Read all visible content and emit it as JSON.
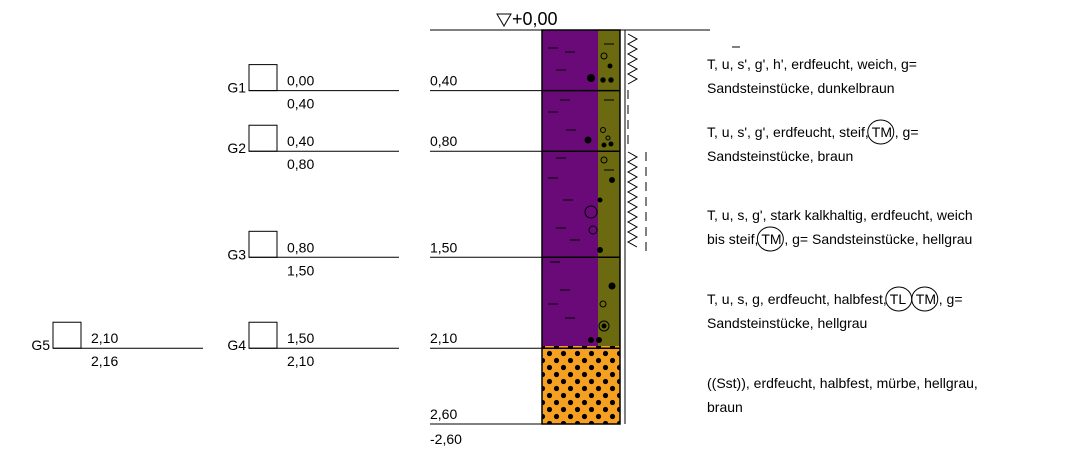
{
  "top_elevation": "+0,00",
  "bottom_elevation": "-2,60",
  "colors": {
    "clay": "#6a0a78",
    "strip": "#6b6a10",
    "rock": "#f5a020",
    "line": "#000000"
  },
  "layers": [
    {
      "depth_from": 0.0,
      "depth_to": 0.4,
      "depth_label": "0,40",
      "soil": "clay",
      "desc": [
        "T, u, s', g', h', erdfeucht, weich, g=",
        "Sandsteinstücke, dunkelbraun"
      ]
    },
    {
      "depth_from": 0.4,
      "depth_to": 0.8,
      "depth_label": "0,80",
      "soil": "clay",
      "desc": [
        "T, u, s', g', erdfeucht, steif,",
        "TM",
        ", g=",
        "Sandsteinstücke, braun"
      ]
    },
    {
      "depth_from": 0.8,
      "depth_to": 1.5,
      "depth_label": "1,50",
      "soil": "clay",
      "desc": [
        "T, u, s, g', stark kalkhaltig, erdfeucht, weich",
        "bis steif,",
        "TM",
        ", g= Sandsteinstücke, hellgrau"
      ]
    },
    {
      "depth_from": 1.5,
      "depth_to": 2.1,
      "depth_label": "2,10",
      "soil": "clay",
      "desc": [
        "T, u, s, g, erdfeucht, halbfest,",
        "TL",
        "TM",
        ", g=",
        "Sandsteinstücke, hellgrau"
      ]
    },
    {
      "depth_from": 2.1,
      "depth_to": 2.6,
      "depth_label": "2,60",
      "soil": "rock",
      "desc": [
        "((Sst)), erdfeucht, halbfest, mürbe, hellgrau,",
        "braun"
      ]
    }
  ],
  "samples": [
    {
      "id": "G1",
      "from": "0,00",
      "to": "0,40",
      "depth": 0.4
    },
    {
      "id": "G2",
      "from": "0,40",
      "to": "0,80",
      "depth": 0.8
    },
    {
      "id": "G3",
      "from": "0,80",
      "to": "1,50",
      "depth": 1.5
    },
    {
      "id": "G4",
      "from": "1,50",
      "to": "2,10",
      "depth": 2.1
    },
    {
      "id": "G5",
      "from": "2,10",
      "to": "2,16",
      "depth": 2.1
    }
  ]
}
